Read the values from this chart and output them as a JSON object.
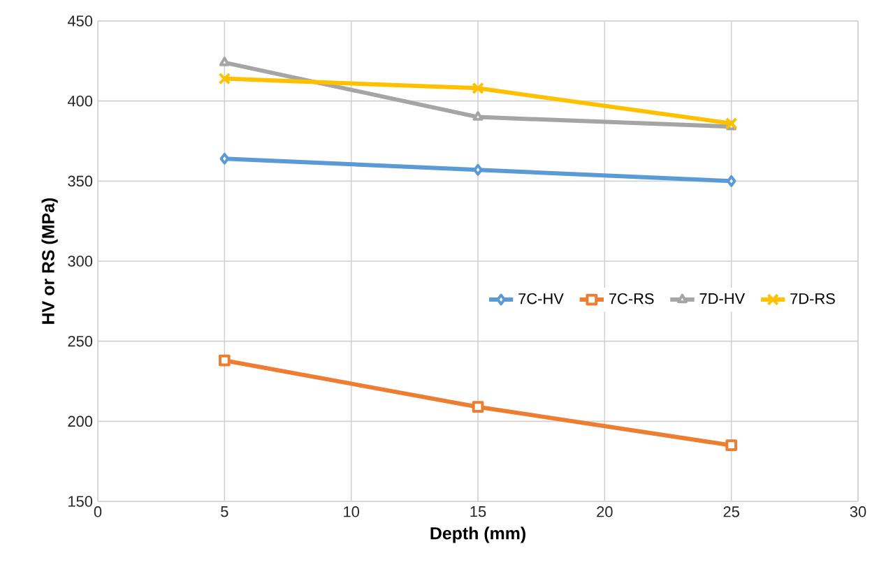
{
  "chart_data": {
    "type": "line",
    "xlabel": "Depth (mm)",
    "ylabel": "HV or RS (MPa)",
    "x": [
      5,
      15,
      25
    ],
    "series": [
      {
        "name": "7C-HV",
        "color": "#5b9bd5",
        "marker": "diamond",
        "values": [
          364,
          357,
          350
        ]
      },
      {
        "name": "7C-RS",
        "color": "#ed7d31",
        "marker": "square",
        "values": [
          238,
          209,
          185
        ]
      },
      {
        "name": "7D-HV",
        "color": "#a5a5a5",
        "marker": "triangle",
        "values": [
          424,
          390,
          384
        ]
      },
      {
        "name": "7D-RS",
        "color": "#ffc000",
        "marker": "cross",
        "values": [
          414,
          408,
          386
        ]
      }
    ],
    "xlim": [
      0,
      30
    ],
    "xticks": [
      0,
      5,
      10,
      15,
      20,
      25,
      30
    ],
    "ylim": [
      150,
      450
    ],
    "yticks": [
      150,
      200,
      250,
      300,
      350,
      400,
      450
    ],
    "grid": true,
    "legend": "right",
    "line_style": "solid"
  }
}
